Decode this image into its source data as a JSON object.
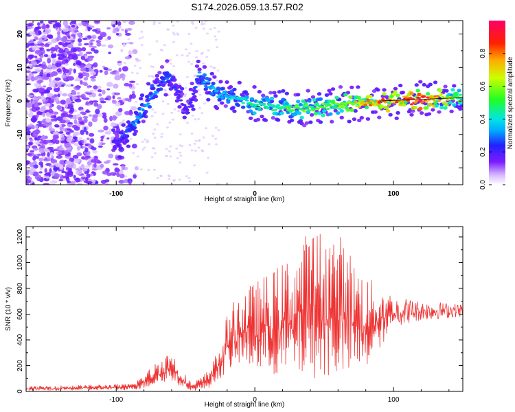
{
  "title": "S174.2026.059.13.57.R02",
  "chart_data": [
    {
      "type": "heatmap",
      "name": "spectrogram",
      "xlabel": "Height of straight line (km)",
      "ylabel": "Frequency (Hz)",
      "xlim": [
        -165,
        150
      ],
      "ylim": [
        -25,
        24
      ],
      "xticks": [
        -100,
        0,
        100
      ],
      "yticks": [
        -20,
        -10,
        0,
        10,
        20
      ],
      "colorbar": {
        "label": "Normalized spectral amplitude",
        "range": [
          0,
          1
        ],
        "ticks": [
          "0.0",
          "0.2",
          "0.4",
          "0.6",
          "0.8"
        ],
        "tick_values": [
          0.0,
          0.2,
          0.4,
          0.6,
          0.8
        ]
      },
      "ridge": {
        "description_points_x": [
          -100,
          -90,
          -80,
          -70,
          -62,
          -55,
          -48,
          -40,
          -35,
          -25,
          -15,
          0,
          20,
          40,
          60,
          80,
          100,
          120,
          150
        ],
        "description_points_y": [
          -13,
          -8,
          -2,
          4,
          8,
          1,
          -3,
          8,
          5,
          2,
          1,
          -1,
          -2,
          -2,
          -1,
          -0.5,
          0,
          0.5,
          1
        ],
        "amplitude": [
          0.2,
          0.3,
          0.35,
          0.3,
          0.3,
          0.2,
          0.2,
          0.3,
          0.35,
          0.35,
          0.4,
          0.45,
          0.5,
          0.55,
          0.6,
          0.75,
          0.85,
          0.95,
          0.5
        ]
      }
    },
    {
      "type": "line",
      "name": "snr",
      "xlabel": "Height of straight line (km)",
      "ylabel": "SNR (10 * v/v)",
      "xlim": [
        -165,
        150
      ],
      "ylim": [
        0,
        1280
      ],
      "xticks": [
        -100,
        0,
        100
      ],
      "yticks": [
        0,
        200,
        400,
        600,
        800,
        1000,
        1200
      ],
      "color": "#ee3333",
      "envelope_x": [
        -165,
        -90,
        -80,
        -70,
        -60,
        -55,
        -45,
        -35,
        -25,
        -20,
        -10,
        0,
        20,
        40,
        60,
        80,
        100,
        120,
        150
      ],
      "envelope_min": [
        5,
        10,
        20,
        50,
        80,
        40,
        5,
        10,
        100,
        150,
        200,
        150,
        100,
        100,
        100,
        150,
        500,
        550,
        580
      ],
      "envelope_max": [
        40,
        60,
        130,
        250,
        330,
        200,
        60,
        150,
        350,
        600,
        800,
        850,
        1000,
        1270,
        1250,
        900,
        750,
        700,
        680
      ]
    }
  ]
}
